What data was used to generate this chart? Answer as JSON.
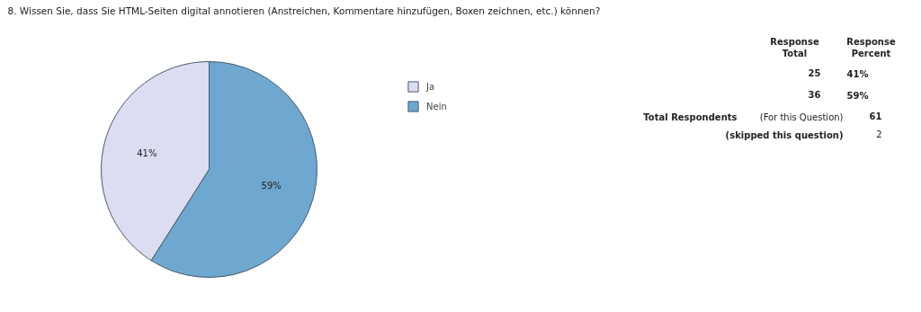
{
  "chart_data": {
    "type": "pie",
    "title": "8.  Wissen Sie, dass Sie HTML-Seiten digital annotieren (Anstreichen, Kommentare hinzufügen, Boxen zeichnen, etc.) können?",
    "categories": [
      "Ja",
      "Nein"
    ],
    "values": [
      41,
      59
    ],
    "colors": [
      "#dcdcf2",
      "#6ea8d0"
    ],
    "value_labels": [
      "41%",
      "59%"
    ],
    "legend": "right",
    "annotations": [
      "Response\nTotal",
      "Response\nPercent",
      "25",
      "41%",
      "36",
      "59%",
      "Total Respondents",
      "(For this Question)",
      "61",
      "(skipped this question)",
      "2"
    ]
  }
}
